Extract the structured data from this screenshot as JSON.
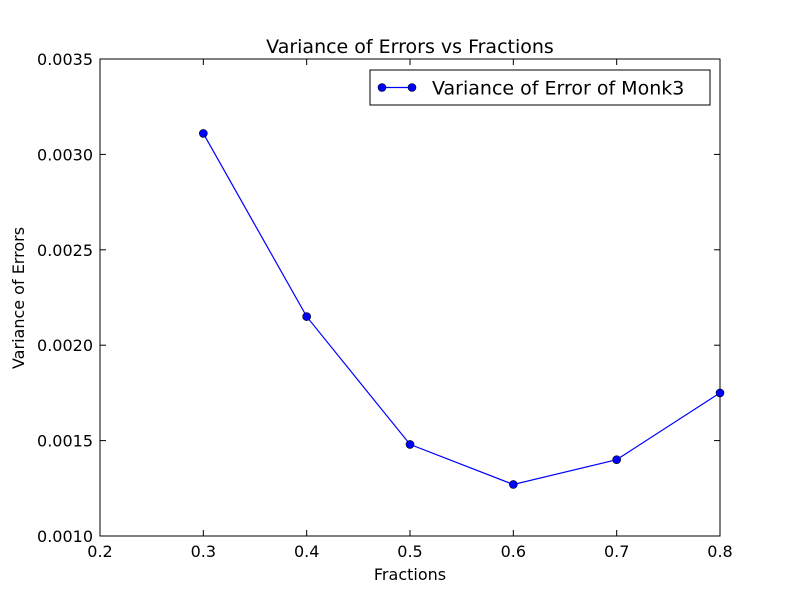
{
  "chart_data": {
    "type": "line",
    "title": "Variance of Errors vs Fractions",
    "xlabel": "Fractions",
    "ylabel": "Variance of Errors",
    "xlim": [
      0.2,
      0.8
    ],
    "ylim": [
      0.001,
      0.0035
    ],
    "xticks": [
      "0.2",
      "0.3",
      "0.4",
      "0.5",
      "0.6",
      "0.7",
      "0.8"
    ],
    "yticks": [
      "0.0010",
      "0.0015",
      "0.0020",
      "0.0025",
      "0.0030",
      "0.0035"
    ],
    "grid": false,
    "legend_position": "top-right",
    "series": [
      {
        "name": "Variance of Error of Monk3",
        "color": "#0000ff",
        "marker": "circle",
        "x": [
          0.3,
          0.4,
          0.5,
          0.6,
          0.7,
          0.8
        ],
        "y": [
          0.00311,
          0.00215,
          0.00148,
          0.00127,
          0.0014,
          0.00175
        ]
      }
    ]
  }
}
